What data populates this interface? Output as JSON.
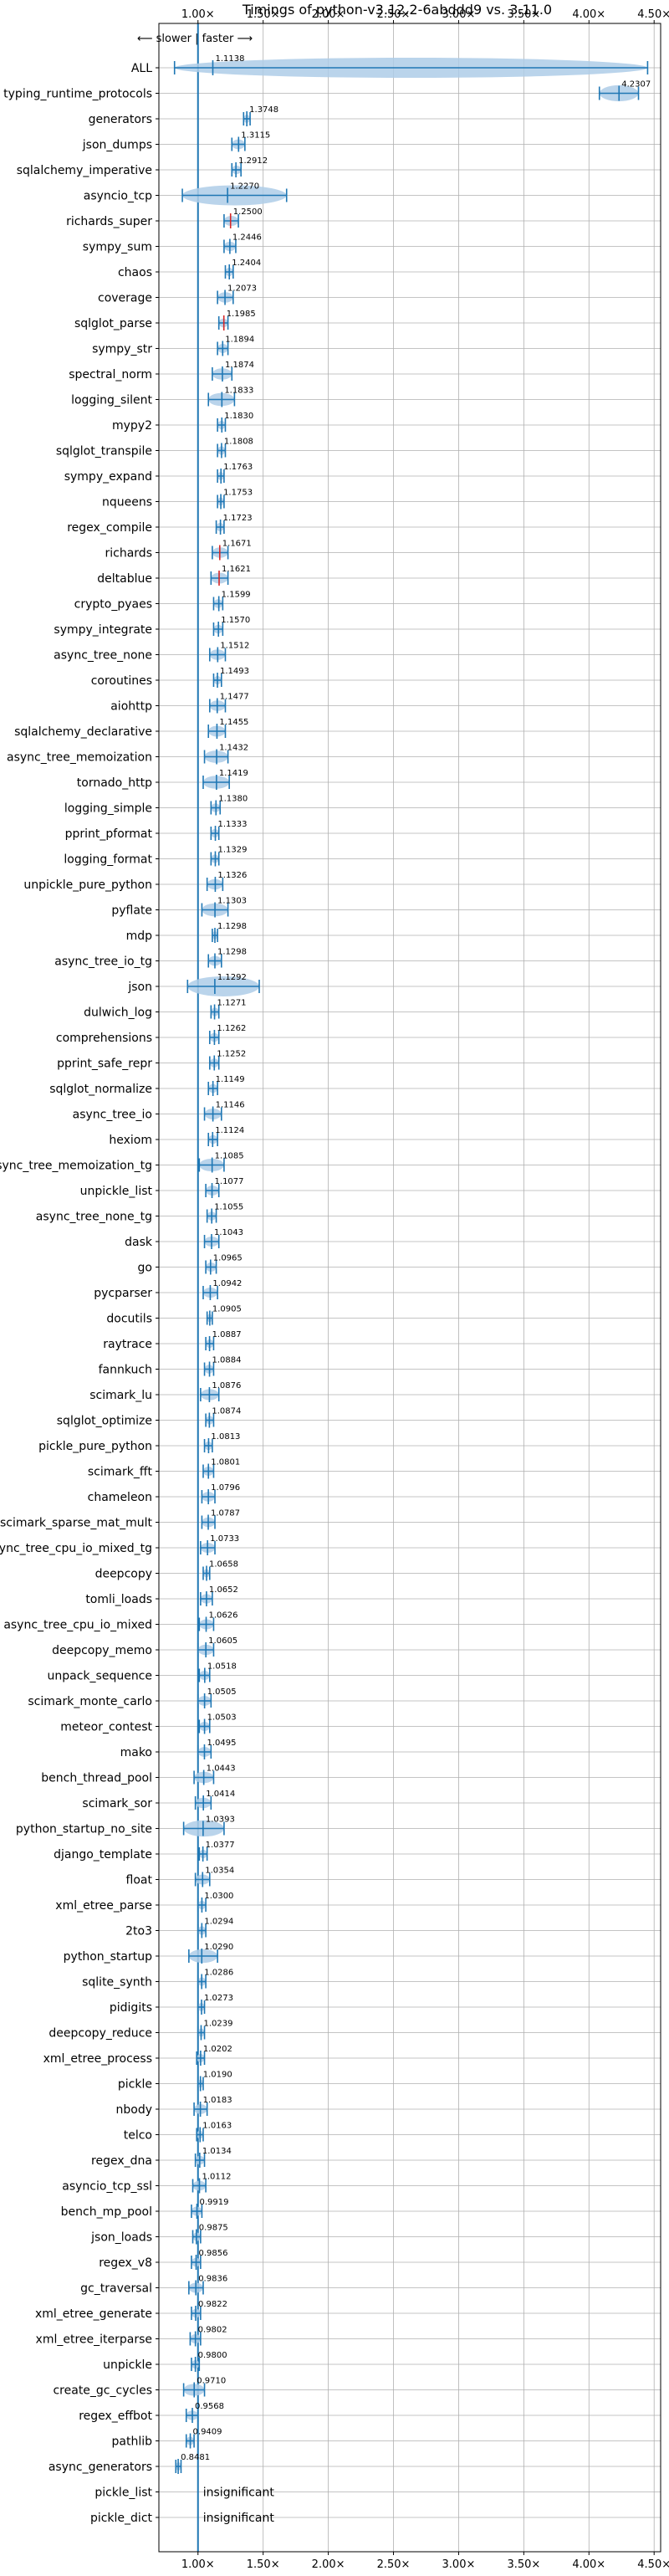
{
  "chart_data": {
    "type": "violin",
    "title": "Timings of python-v3.12.2-6abddd9 vs. 3.11.0",
    "direction_annotation": "⟵ slower  |  faster ⟶",
    "xlim": [
      0.7,
      4.55
    ],
    "x_ticks": [
      1.0,
      1.5,
      2.0,
      2.5,
      3.0,
      3.5,
      4.0,
      4.5
    ],
    "x_tick_labels": [
      "1.00×",
      "1.50×",
      "2.00×",
      "2.50×",
      "3.00×",
      "3.50×",
      "4.00×",
      "4.50×"
    ],
    "grid": true,
    "reference_line": 1.0,
    "benchmarks": [
      {
        "name": "ALL",
        "value": 1.1138,
        "label": "1.1138",
        "range": [
          0.82,
          4.45
        ]
      },
      {
        "name": "typing_runtime_protocols",
        "value": 4.2307,
        "label": "4.2307",
        "range": [
          4.08,
          4.38
        ]
      },
      {
        "name": "generators",
        "value": 1.3748,
        "label": "1.3748",
        "range": [
          1.35,
          1.4
        ]
      },
      {
        "name": "json_dumps",
        "value": 1.3115,
        "label": "1.3115",
        "range": [
          1.26,
          1.36
        ]
      },
      {
        "name": "sqlalchemy_imperative",
        "value": 1.2912,
        "label": "1.2912",
        "range": [
          1.26,
          1.33
        ]
      },
      {
        "name": "asyncio_tcp",
        "value": 1.227,
        "label": "1.2270",
        "range": [
          0.88,
          1.68
        ]
      },
      {
        "name": "richards_super",
        "value": 1.25,
        "label": "1.2500",
        "range": [
          1.2,
          1.31
        ]
      },
      {
        "name": "sympy_sum",
        "value": 1.2446,
        "label": "1.2446",
        "range": [
          1.2,
          1.29
        ]
      },
      {
        "name": "chaos",
        "value": 1.2404,
        "label": "1.2404",
        "range": [
          1.21,
          1.27
        ]
      },
      {
        "name": "coverage",
        "value": 1.2073,
        "label": "1.2073",
        "range": [
          1.15,
          1.27
        ]
      },
      {
        "name": "sqlglot_parse",
        "value": 1.1985,
        "label": "1.1985",
        "range": [
          1.16,
          1.23
        ]
      },
      {
        "name": "sympy_str",
        "value": 1.1894,
        "label": "1.1894",
        "range": [
          1.15,
          1.23
        ]
      },
      {
        "name": "spectral_norm",
        "value": 1.1874,
        "label": "1.1874",
        "range": [
          1.11,
          1.26
        ]
      },
      {
        "name": "logging_silent",
        "value": 1.1833,
        "label": "1.1833",
        "range": [
          1.08,
          1.28
        ]
      },
      {
        "name": "mypy2",
        "value": 1.183,
        "label": "1.1830",
        "range": [
          1.15,
          1.21
        ]
      },
      {
        "name": "sqlglot_transpile",
        "value": 1.1808,
        "label": "1.1808",
        "range": [
          1.15,
          1.21
        ]
      },
      {
        "name": "sympy_expand",
        "value": 1.1763,
        "label": "1.1763",
        "range": [
          1.15,
          1.2
        ]
      },
      {
        "name": "nqueens",
        "value": 1.1753,
        "label": "1.1753",
        "range": [
          1.15,
          1.2
        ]
      },
      {
        "name": "regex_compile",
        "value": 1.1723,
        "label": "1.1723",
        "range": [
          1.14,
          1.2
        ]
      },
      {
        "name": "richards",
        "value": 1.1671,
        "label": "1.1671",
        "range": [
          1.11,
          1.23
        ]
      },
      {
        "name": "deltablue",
        "value": 1.1621,
        "label": "1.1621",
        "range": [
          1.1,
          1.23
        ]
      },
      {
        "name": "crypto_pyaes",
        "value": 1.1599,
        "label": "1.1599",
        "range": [
          1.12,
          1.19
        ]
      },
      {
        "name": "sympy_integrate",
        "value": 1.157,
        "label": "1.1570",
        "range": [
          1.12,
          1.19
        ]
      },
      {
        "name": "async_tree_none",
        "value": 1.1512,
        "label": "1.1512",
        "range": [
          1.09,
          1.21
        ]
      },
      {
        "name": "coroutines",
        "value": 1.1493,
        "label": "1.1493",
        "range": [
          1.12,
          1.18
        ]
      },
      {
        "name": "aiohttp",
        "value": 1.1477,
        "label": "1.1477",
        "range": [
          1.09,
          1.21
        ]
      },
      {
        "name": "sqlalchemy_declarative",
        "value": 1.1455,
        "label": "1.1455",
        "range": [
          1.08,
          1.21
        ]
      },
      {
        "name": "async_tree_memoization",
        "value": 1.1432,
        "label": "1.1432",
        "range": [
          1.05,
          1.23
        ]
      },
      {
        "name": "tornado_http",
        "value": 1.1419,
        "label": "1.1419",
        "range": [
          1.04,
          1.24
        ]
      },
      {
        "name": "logging_simple",
        "value": 1.138,
        "label": "1.1380",
        "range": [
          1.1,
          1.17
        ]
      },
      {
        "name": "pprint_pformat",
        "value": 1.1333,
        "label": "1.1333",
        "range": [
          1.1,
          1.16
        ]
      },
      {
        "name": "logging_format",
        "value": 1.1329,
        "label": "1.1329",
        "range": [
          1.1,
          1.16
        ]
      },
      {
        "name": "unpickle_pure_python",
        "value": 1.1326,
        "label": "1.1326",
        "range": [
          1.07,
          1.19
        ]
      },
      {
        "name": "pyflate",
        "value": 1.1303,
        "label": "1.1303",
        "range": [
          1.03,
          1.23
        ]
      },
      {
        "name": "mdp",
        "value": 1.1298,
        "label": "1.1298",
        "range": [
          1.11,
          1.15
        ]
      },
      {
        "name": "async_tree_io_tg",
        "value": 1.1298,
        "label": "1.1298",
        "range": [
          1.08,
          1.18
        ]
      },
      {
        "name": "json",
        "value": 1.1292,
        "label": "1.1292",
        "range": [
          0.92,
          1.47
        ]
      },
      {
        "name": "dulwich_log",
        "value": 1.1271,
        "label": "1.1271",
        "range": [
          1.1,
          1.16
        ]
      },
      {
        "name": "comprehensions",
        "value": 1.1262,
        "label": "1.1262",
        "range": [
          1.09,
          1.16
        ]
      },
      {
        "name": "pprint_safe_repr",
        "value": 1.1252,
        "label": "1.1252",
        "range": [
          1.09,
          1.16
        ]
      },
      {
        "name": "sqlglot_normalize",
        "value": 1.1149,
        "label": "1.1149",
        "range": [
          1.08,
          1.15
        ]
      },
      {
        "name": "async_tree_io",
        "value": 1.1146,
        "label": "1.1146",
        "range": [
          1.05,
          1.18
        ]
      },
      {
        "name": "hexiom",
        "value": 1.1124,
        "label": "1.1124",
        "range": [
          1.08,
          1.15
        ]
      },
      {
        "name": "async_tree_memoization_tg",
        "value": 1.1085,
        "label": "1.1085",
        "range": [
          1.01,
          1.2
        ]
      },
      {
        "name": "unpickle_list",
        "value": 1.1077,
        "label": "1.1077",
        "range": [
          1.06,
          1.16
        ]
      },
      {
        "name": "async_tree_none_tg",
        "value": 1.1055,
        "label": "1.1055",
        "range": [
          1.07,
          1.14
        ]
      },
      {
        "name": "dask",
        "value": 1.1043,
        "label": "1.1043",
        "range": [
          1.05,
          1.16
        ]
      },
      {
        "name": "go",
        "value": 1.0965,
        "label": "1.0965",
        "range": [
          1.06,
          1.14
        ]
      },
      {
        "name": "pycparser",
        "value": 1.0942,
        "label": "1.0942",
        "range": [
          1.04,
          1.15
        ]
      },
      {
        "name": "docutils",
        "value": 1.0905,
        "label": "1.0905",
        "range": [
          1.07,
          1.11
        ]
      },
      {
        "name": "raytrace",
        "value": 1.0887,
        "label": "1.0887",
        "range": [
          1.06,
          1.12
        ]
      },
      {
        "name": "fannkuch",
        "value": 1.0884,
        "label": "1.0884",
        "range": [
          1.05,
          1.12
        ]
      },
      {
        "name": "scimark_lu",
        "value": 1.0876,
        "label": "1.0876",
        "range": [
          1.02,
          1.16
        ]
      },
      {
        "name": "sqlglot_optimize",
        "value": 1.0874,
        "label": "1.0874",
        "range": [
          1.06,
          1.12
        ]
      },
      {
        "name": "pickle_pure_python",
        "value": 1.0813,
        "label": "1.0813",
        "range": [
          1.05,
          1.11
        ]
      },
      {
        "name": "scimark_fft",
        "value": 1.0801,
        "label": "1.0801",
        "range": [
          1.04,
          1.12
        ]
      },
      {
        "name": "chameleon",
        "value": 1.0796,
        "label": "1.0796",
        "range": [
          1.03,
          1.13
        ]
      },
      {
        "name": "scimark_sparse_mat_mult",
        "value": 1.0787,
        "label": "1.0787",
        "range": [
          1.03,
          1.13
        ]
      },
      {
        "name": "async_tree_cpu_io_mixed_tg",
        "value": 1.0733,
        "label": "1.0733",
        "range": [
          1.02,
          1.13
        ]
      },
      {
        "name": "deepcopy",
        "value": 1.0658,
        "label": "1.0658",
        "range": [
          1.04,
          1.09
        ]
      },
      {
        "name": "tomli_loads",
        "value": 1.0652,
        "label": "1.0652",
        "range": [
          1.02,
          1.11
        ]
      },
      {
        "name": "async_tree_cpu_io_mixed",
        "value": 1.0626,
        "label": "1.0626",
        "range": [
          1.01,
          1.12
        ]
      },
      {
        "name": "deepcopy_memo",
        "value": 1.0605,
        "label": "1.0605",
        "range": [
          1.0,
          1.12
        ]
      },
      {
        "name": "unpack_sequence",
        "value": 1.0518,
        "label": "1.0518",
        "range": [
          1.01,
          1.09
        ]
      },
      {
        "name": "scimark_monte_carlo",
        "value": 1.0505,
        "label": "1.0505",
        "range": [
          1.0,
          1.1
        ]
      },
      {
        "name": "meteor_contest",
        "value": 1.0503,
        "label": "1.0503",
        "range": [
          1.01,
          1.09
        ]
      },
      {
        "name": "mako",
        "value": 1.0495,
        "label": "1.0495",
        "range": [
          1.0,
          1.1
        ]
      },
      {
        "name": "bench_thread_pool",
        "value": 1.0443,
        "label": "1.0443",
        "range": [
          0.97,
          1.12
        ]
      },
      {
        "name": "scimark_sor",
        "value": 1.0414,
        "label": "1.0414",
        "range": [
          0.98,
          1.1
        ]
      },
      {
        "name": "python_startup_no_site",
        "value": 1.0393,
        "label": "1.0393",
        "range": [
          0.89,
          1.2
        ]
      },
      {
        "name": "django_template",
        "value": 1.0377,
        "label": "1.0377",
        "range": [
          1.01,
          1.07
        ]
      },
      {
        "name": "float",
        "value": 1.0354,
        "label": "1.0354",
        "range": [
          0.98,
          1.09
        ]
      },
      {
        "name": "xml_etree_parse",
        "value": 1.03,
        "label": "1.0300",
        "range": [
          1.0,
          1.06
        ]
      },
      {
        "name": "2to3",
        "value": 1.0294,
        "label": "1.0294",
        "range": [
          1.0,
          1.06
        ]
      },
      {
        "name": "python_startup",
        "value": 1.029,
        "label": "1.0290",
        "range": [
          0.93,
          1.15
        ]
      },
      {
        "name": "sqlite_synth",
        "value": 1.0286,
        "label": "1.0286",
        "range": [
          1.0,
          1.06
        ]
      },
      {
        "name": "pidigits",
        "value": 1.0273,
        "label": "1.0273",
        "range": [
          1.0,
          1.05
        ]
      },
      {
        "name": "deepcopy_reduce",
        "value": 1.0239,
        "label": "1.0239",
        "range": [
          1.0,
          1.05
        ]
      },
      {
        "name": "xml_etree_process",
        "value": 1.0202,
        "label": "1.0202",
        "range": [
          0.99,
          1.05
        ]
      },
      {
        "name": "pickle",
        "value": 1.019,
        "label": "1.0190",
        "range": [
          1.0,
          1.04
        ]
      },
      {
        "name": "nbody",
        "value": 1.0183,
        "label": "1.0183",
        "range": [
          0.97,
          1.07
        ]
      },
      {
        "name": "telco",
        "value": 1.0163,
        "label": "1.0163",
        "range": [
          0.99,
          1.04
        ]
      },
      {
        "name": "regex_dna",
        "value": 1.0134,
        "label": "1.0134",
        "range": [
          0.98,
          1.05
        ]
      },
      {
        "name": "asyncio_tcp_ssl",
        "value": 1.0112,
        "label": "1.0112",
        "range": [
          0.96,
          1.06
        ]
      },
      {
        "name": "bench_mp_pool",
        "value": 0.9919,
        "label": "0.9919",
        "range": [
          0.95,
          1.03
        ]
      },
      {
        "name": "json_loads",
        "value": 0.9875,
        "label": "0.9875",
        "range": [
          0.96,
          1.02
        ]
      },
      {
        "name": "regex_v8",
        "value": 0.9856,
        "label": "0.9856",
        "range": [
          0.95,
          1.02
        ]
      },
      {
        "name": "gc_traversal",
        "value": 0.9836,
        "label": "0.9836",
        "range": [
          0.93,
          1.04
        ]
      },
      {
        "name": "xml_etree_generate",
        "value": 0.9822,
        "label": "0.9822",
        "range": [
          0.95,
          1.02
        ]
      },
      {
        "name": "xml_etree_iterparse",
        "value": 0.9802,
        "label": "0.9802",
        "range": [
          0.94,
          1.02
        ]
      },
      {
        "name": "unpickle",
        "value": 0.98,
        "label": "0.9800",
        "range": [
          0.95,
          1.01
        ]
      },
      {
        "name": "create_gc_cycles",
        "value": 0.971,
        "label": "0.9710",
        "range": [
          0.89,
          1.05
        ]
      },
      {
        "name": "regex_effbot",
        "value": 0.9568,
        "label": "0.9568",
        "range": [
          0.91,
          1.0
        ]
      },
      {
        "name": "pathlib",
        "value": 0.9409,
        "label": "0.9409",
        "range": [
          0.91,
          0.97
        ]
      },
      {
        "name": "async_generators",
        "value": 0.8481,
        "label": "0.8481",
        "range": [
          0.83,
          0.87
        ]
      },
      {
        "name": "pickle_list",
        "value": null,
        "label": "insignificant",
        "range": null
      },
      {
        "name": "pickle_dict",
        "value": null,
        "label": "insignificant",
        "range": null
      }
    ]
  },
  "colors": {
    "violin": "#1f77b4",
    "violin_fill": "#aecde8",
    "median_red": "#d62728",
    "grid": "#b0b0b0",
    "reference": "#1f77b4"
  }
}
